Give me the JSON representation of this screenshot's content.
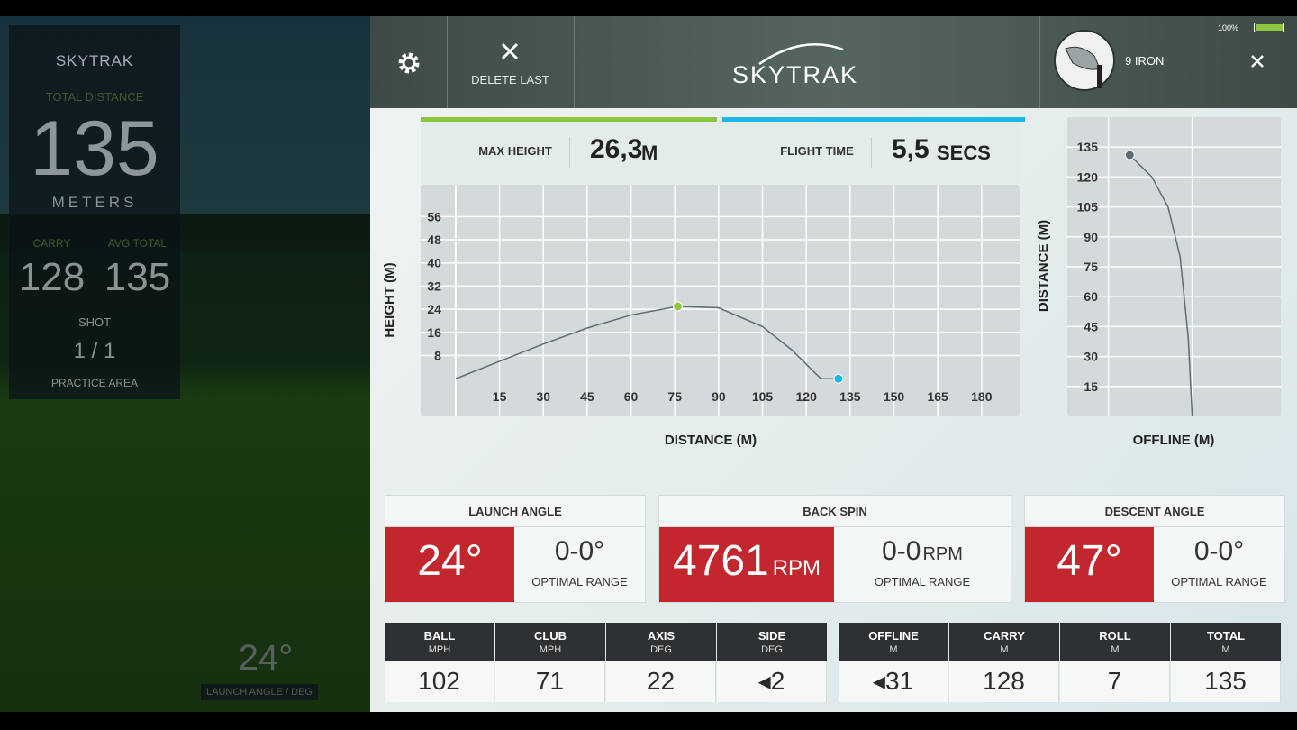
{
  "left_panel": {
    "logo": "SKYTRAK",
    "total_distance_label": "TOTAL DISTANCE",
    "total_distance": "135",
    "total_distance_unit": "METERS",
    "carry_label": "CARRY",
    "carry": "128",
    "avg_total_label": "AVG TOTAL",
    "avg_total": "135",
    "shot_label": "SHOT",
    "shot": "1 / 1",
    "practice_area": "PRACTICE AREA"
  },
  "background": {
    "launch_angle": "24°",
    "launch_angle_label": "LAUNCH ANGLE / DEG"
  },
  "header": {
    "delete_last": "DELETE LAST",
    "logo": "SKYTRAK",
    "club": "9 IRON",
    "battery": "100%"
  },
  "flight_stats": [
    {
      "label": "MAX HEIGHT",
      "value": "26,3",
      "unit": "M",
      "color": "#8dc63f"
    },
    {
      "label": "FLIGHT TIME",
      "value": "5,5",
      "unit": "SECS",
      "color": "#1bb7e6"
    }
  ],
  "chart_data": [
    {
      "type": "line",
      "x_label": "DISTANCE (M)",
      "y_label": "HEIGHT (M)",
      "line_color": "#5d6b75",
      "x": [
        0,
        15,
        30,
        45,
        60,
        76,
        90,
        105,
        115,
        122,
        125,
        131
      ],
      "values": [
        0,
        6,
        12,
        17.5,
        22,
        25,
        24.5,
        18,
        10,
        3,
        0,
        0
      ],
      "markers": {
        "x": [
          76,
          131
        ],
        "values": [
          25,
          0
        ],
        "colors": [
          "#8dc63f",
          "#1bb7e6"
        ]
      },
      "xlim": [
        -12,
        193
      ],
      "ylim": [
        -13,
        67
      ],
      "xticks": [
        15,
        30,
        45,
        60,
        75,
        90,
        105,
        120,
        135,
        150,
        165,
        180
      ],
      "yticks": [
        8,
        16,
        24,
        32,
        40,
        48,
        56
      ],
      "grid": true
    },
    {
      "type": "line",
      "x_label": "OFFLINE (M)",
      "y_label": "DISTANCE (M)",
      "line_color": "#5d6b75",
      "x": [
        0,
        -2,
        -6,
        -12,
        -20,
        -28,
        -31
      ],
      "values": [
        0,
        40,
        80,
        105,
        120,
        128,
        131
      ],
      "markers": {
        "x": [
          -31
        ],
        "values": [
          131
        ],
        "colors": [
          "#5d6b75"
        ]
      },
      "xlim": [
        -62,
        44
      ],
      "ylim": [
        0,
        150
      ],
      "yticks": [
        15,
        30,
        45,
        60,
        75,
        90,
        105,
        120,
        135
      ],
      "grid": true
    }
  ],
  "metrics": [
    {
      "title": "LAUNCH ANGLE",
      "value": "24°",
      "optimal": "0-0°",
      "optimal_label": "OPTIMAL RANGE"
    },
    {
      "title": "BACK SPIN",
      "value": "4761",
      "unit": "RPM",
      "optimal": "0-0",
      "optimal_unit": "RPM",
      "optimal_label": "OPTIMAL RANGE"
    },
    {
      "title": "DESCENT ANGLE",
      "value": "47°",
      "optimal": "0-0°",
      "optimal_label": "OPTIMAL RANGE"
    }
  ],
  "table": [
    {
      "columns": [
        {
          "name": "BALL",
          "unit": "MPH",
          "value": "102"
        },
        {
          "name": "CLUB",
          "unit": "MPH",
          "value": "71"
        },
        {
          "name": "AXIS",
          "unit": "DEG",
          "value": "22"
        },
        {
          "name": "SIDE",
          "unit": "DEG",
          "value": "◂2"
        }
      ]
    },
    {
      "columns": [
        {
          "name": "OFFLINE",
          "unit": "M",
          "value": "◂31"
        },
        {
          "name": "CARRY",
          "unit": "M",
          "value": "128"
        },
        {
          "name": "ROLL",
          "unit": "M",
          "value": "7"
        },
        {
          "name": "TOTAL",
          "unit": "M",
          "value": "135"
        }
      ]
    }
  ]
}
